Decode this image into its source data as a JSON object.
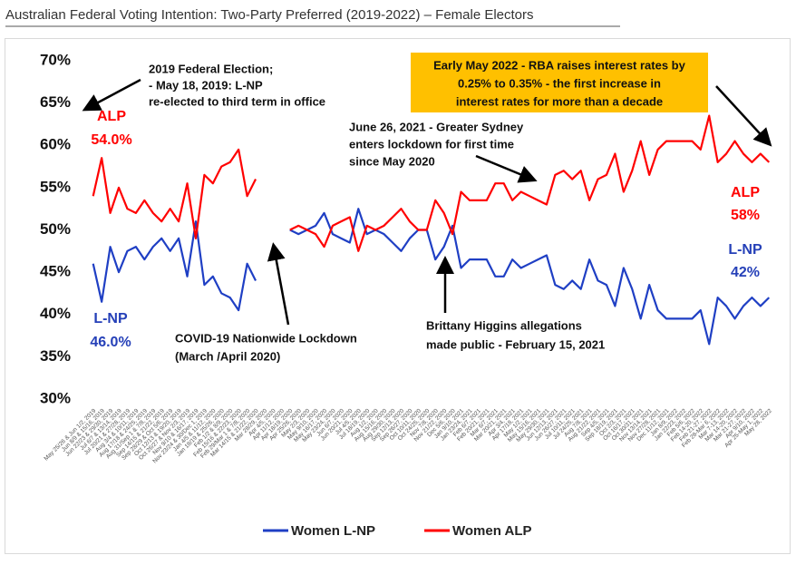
{
  "chart_data": {
    "type": "line",
    "title": "Australian Federal Voting Intention: Two-Party Preferred (2019-2022) – Female Electors",
    "categories": [
      "May 25/26 & Jun 1/2, 2019",
      "Jun 8/9 & 15/16, 2019",
      "Jun 22/23 & 29/30, 2019",
      "Jul 6/7 & 13/14, 2019",
      "Jul 20/21 & 27/28, 2019",
      "Aug 3/4 & 10/11, 2019",
      "Aug 17/18 & 24/25, 2019",
      "Aug 31/Sep 1 & 7/8, 2019",
      "Sep 14/15 & 21/22, 2019",
      "Sep 28/29 & Oct 5/6, 2019",
      "Oct 12/13 & 19/20, 2019",
      "Oct 26/27 & Nov 2/3, 2019",
      "Nov 9/10 & 16/17, 2019",
      "Nov 23/24 & 30/Dec 1, 2019",
      "Jan 4/5 & 11/12, 2020",
      "Jan 18/19 & 25/26, 2020",
      "Feb 1/2 & 8/9, 2020",
      "Feb 15/16 & 22/23, 2020",
      "Feb 29/Mar 1 & 7/8, 2020",
      "Mar 14/15 & 21/22, 2020",
      "Mar 28/29, 2020",
      "Apr 4/5, 2020",
      "Apr 11/12, 2020",
      "Apr 18/19, 2020",
      "Apr 25/26, 2020",
      "May 2/3, 2020",
      "May 9/10, 2020",
      "May 16/17, 2020",
      "May 23/24, 2020",
      "Jun 6/7, 2020",
      "Jun 20/21, 2020",
      "Jul 4/5, 2020",
      "Jul 18/19, 2020",
      "Aug 1/2, 2020",
      "Aug 15/16, 2020",
      "Aug 29/30, 2020",
      "Sep 12/13, 2020",
      "Sep 26/27, 2020",
      "Oct 10/11, 2020",
      "Oct 24/25, 2020",
      "Nov 7/8, 2020",
      "Nov 21/22, 2020",
      "Dec 5/6, 2020",
      "Jan 9/10, 2021",
      "Jan 23/24, 2021",
      "Feb 6/7, 2021",
      "Feb 20/21, 2021",
      "Mar 6/7, 2021",
      "Mar 20/21, 2021",
      "Apr 3/4, 2021",
      "Apr 17/18, 2021",
      "May 1/2, 2021",
      "May 15/16, 2021",
      "May 29/30, 2021",
      "Jun 12/13, 2021",
      "Jun 26/27, 2021",
      "Jul 10/11, 2021",
      "Jul 24/25, 2021",
      "Aug 7/8, 2021",
      "Aug 21/22, 2021",
      "Sep 4/5, 2021",
      "Sep 18/19, 2021",
      "Oct 2/3, 2021",
      "Oct 16/17, 2021",
      "Oct 30/31, 2021",
      "Nov 13/14, 2021",
      "Nov 27/28, 2021",
      "Dec 11/12, 2021",
      "Jan 8/9, 2022",
      "Jan 22/23, 2022",
      "Feb 5/6, 2022",
      "Feb 14-20, 2022",
      "Feb 21-27, 2022",
      "Feb 28-Mar 6, 2022",
      "Mar 7-13, 2022",
      "Mar 14-20, 2022",
      "Mar 21-27, 2022",
      "Apr 9/10, 2022",
      "Apr 25-May 1, 2022",
      "May 28, 2022"
    ],
    "series": [
      {
        "name": "Women L-NP",
        "color": "#1f3fc4",
        "values": [
          46,
          41.5,
          48,
          45,
          47.5,
          48,
          46.5,
          48,
          49,
          47.5,
          49,
          44.5,
          51,
          43.5,
          44.5,
          42.5,
          42,
          40.5,
          46,
          44,
          null,
          null,
          null,
          50,
          49.5,
          50,
          50.5,
          52,
          49.5,
          49,
          48.5,
          52.5,
          49.5,
          50,
          49.5,
          48.5,
          47.5,
          49,
          50,
          50,
          46.5,
          48,
          50.5,
          45.5,
          46.5,
          46.5,
          46.5,
          44.5,
          44.5,
          46.5,
          45.5,
          46,
          46.5,
          47,
          43.5,
          43,
          44,
          43,
          46.5,
          44,
          43.5,
          41,
          45.5,
          43,
          39.5,
          43.5,
          40.5,
          39.5,
          39.5,
          39.5,
          39.5,
          40.5,
          36.5,
          42,
          41,
          39.5,
          41,
          42,
          41,
          42
        ]
      },
      {
        "name": "Women ALP",
        "color": "#ff0000",
        "values": [
          54,
          58.5,
          52,
          55,
          52.5,
          52,
          53.5,
          52,
          51,
          52.5,
          51,
          55.5,
          49,
          56.5,
          55.5,
          57.5,
          58,
          59.5,
          54,
          56,
          null,
          null,
          null,
          50,
          50.5,
          50,
          49.5,
          48,
          50.5,
          51,
          51.5,
          47.5,
          50.5,
          50,
          50.5,
          51.5,
          52.5,
          51,
          50,
          50,
          53.5,
          52,
          49.5,
          54.5,
          53.5,
          53.5,
          53.5,
          55.5,
          55.5,
          53.5,
          54.5,
          54,
          53.5,
          53,
          56.5,
          57,
          56,
          57,
          53.5,
          56,
          56.5,
          59,
          54.5,
          57,
          60.5,
          56.5,
          59.5,
          60.5,
          60.5,
          60.5,
          60.5,
          59.5,
          63.5,
          58,
          59,
          60.5,
          59,
          58,
          59,
          58
        ]
      }
    ],
    "ylim": [
      30,
      70
    ],
    "yticks": [
      {
        "value": 30,
        "label": "30%"
      },
      {
        "value": 35,
        "label": "35%"
      },
      {
        "value": 40,
        "label": "40%"
      },
      {
        "value": 45,
        "label": "45%"
      },
      {
        "value": 50,
        "label": "50%"
      },
      {
        "value": 55,
        "label": "55%"
      },
      {
        "value": 60,
        "label": "60%"
      },
      {
        "value": 65,
        "label": "65%"
      },
      {
        "value": 70,
        "label": "70%"
      }
    ],
    "grid": false,
    "legend": "bottom",
    "annotations": [
      {
        "lines": [
          "2019 Federal Election;",
          "- May 18, 2019: L-NP",
          "re-elected to third term in office"
        ]
      },
      {
        "lines": [
          "COVID-19 Nationwide Lockdown",
          "(March /April 2020)"
        ]
      },
      {
        "lines": [
          "June 26, 2021 - Greater Sydney",
          "enters lockdown for first time",
          "since May 2020"
        ]
      },
      {
        "lines": [
          "Early May 2022 - RBA raises interest rates by",
          "0.25% to 0.35% - the first increase in",
          "interest rates for more than a decade"
        ]
      },
      {
        "lines": [
          "Brittany Higgins allegations",
          "made public - February 15, 2021"
        ]
      },
      {
        "lines": [
          "ALP",
          "54.0%"
        ]
      },
      {
        "lines": [
          "L-NP",
          "46.0%"
        ]
      },
      {
        "lines": [
          "ALP",
          "58%"
        ]
      },
      {
        "lines": [
          "L-NP",
          "42%"
        ]
      }
    ]
  }
}
